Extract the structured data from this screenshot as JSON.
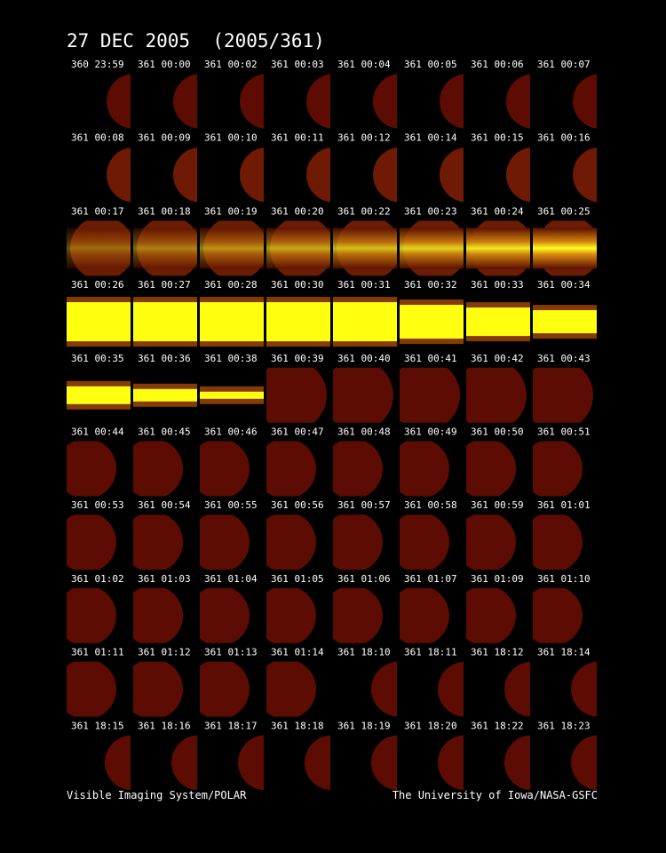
{
  "header": {
    "title": "27 DEC 2005  (2005/361)"
  },
  "frames": [
    "360 23:59",
    "361 00:00",
    "361 00:02",
    "361 00:03",
    "361 00:04",
    "361 00:05",
    "361 00:06",
    "361 00:07",
    "361 00:08",
    "361 00:09",
    "361 00:10",
    "361 00:11",
    "361 00:12",
    "361 00:14",
    "361 00:15",
    "361 00:16",
    "361 00:17",
    "361 00:18",
    "361 00:19",
    "361 00:20",
    "361 00:22",
    "361 00:23",
    "361 00:24",
    "361 00:25",
    "361 00:26",
    "361 00:27",
    "361 00:28",
    "361 00:30",
    "361 00:31",
    "361 00:32",
    "361 00:33",
    "361 00:34",
    "361 00:35",
    "361 00:36",
    "361 00:38",
    "361 00:39",
    "361 00:40",
    "361 00:41",
    "361 00:42",
    "361 00:43",
    "361 00:44",
    "361 00:45",
    "361 00:46",
    "361 00:47",
    "361 00:48",
    "361 00:49",
    "361 00:50",
    "361 00:51",
    "361 00:53",
    "361 00:54",
    "361 00:55",
    "361 00:56",
    "361 00:57",
    "361 00:58",
    "361 00:59",
    "361 01:01",
    "361 01:02",
    "361 01:03",
    "361 01:04",
    "361 01:05",
    "361 01:06",
    "361 01:07",
    "361 01:09",
    "361 01:10",
    "361 01:11",
    "361 01:12",
    "361 01:13",
    "361 01:14",
    "361 18:10",
    "361 18:11",
    "361 18:12",
    "361 18:14",
    "361 18:15",
    "361 18:16",
    "361 18:17",
    "361 18:18",
    "361 18:19",
    "361 18:20",
    "361 18:22",
    "361 18:23"
  ],
  "footer": {
    "left": "Visible Imaging System/POLAR",
    "right": "The University of Iowa/NASA-GSFC"
  }
}
